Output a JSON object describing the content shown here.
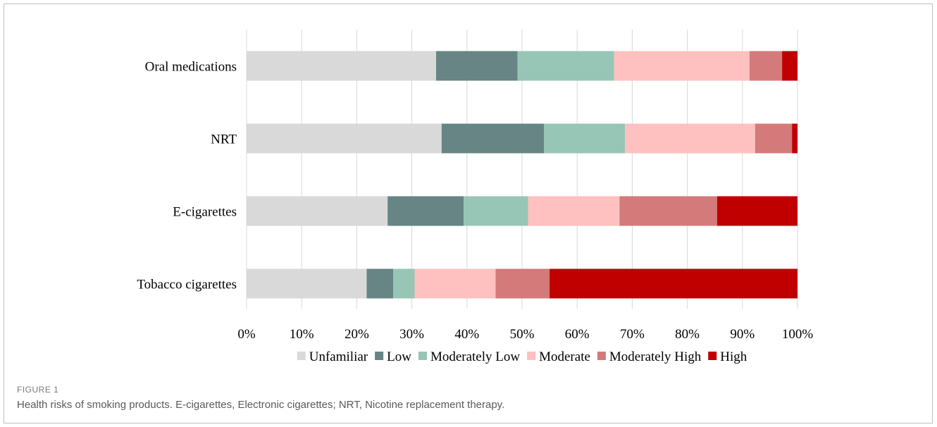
{
  "figure": {
    "label": "FIGURE 1",
    "caption": "Health risks of smoking products. E-cigarettes, Electronic cigarettes; NRT, Nicotine replacement therapy."
  },
  "chart_data": {
    "type": "bar",
    "orientation": "horizontal",
    "stacked": true,
    "categories": [
      "Oral medications",
      "NRT",
      "E-cigarettes",
      "Tobacco cigarettes"
    ],
    "xlim": [
      0,
      100
    ],
    "xticks": [
      "0%",
      "10%",
      "20%",
      "30%",
      "40%",
      "50%",
      "60%",
      "70%",
      "80%",
      "90%",
      "100%"
    ],
    "grid": "vertical",
    "legend_position": "bottom",
    "series": [
      {
        "name": "Unfamiliar",
        "color": "#d9d9d9",
        "values": [
          34.4,
          35.4,
          25.6,
          21.8
        ]
      },
      {
        "name": "Low",
        "color": "#668584",
        "values": [
          14.8,
          18.6,
          13.8,
          4.8
        ]
      },
      {
        "name": "Moderately Low",
        "color": "#97c5b6",
        "values": [
          17.5,
          14.7,
          11.7,
          3.9
        ]
      },
      {
        "name": "Moderate",
        "color": "#ffc0c0",
        "values": [
          24.6,
          23.6,
          16.6,
          14.7
        ]
      },
      {
        "name": "Moderately High",
        "color": "#d47a7a",
        "values": [
          5.9,
          6.7,
          17.7,
          9.8
        ]
      },
      {
        "name": "High",
        "color": "#c00000",
        "values": [
          2.8,
          1.0,
          14.6,
          45.0
        ]
      }
    ]
  }
}
